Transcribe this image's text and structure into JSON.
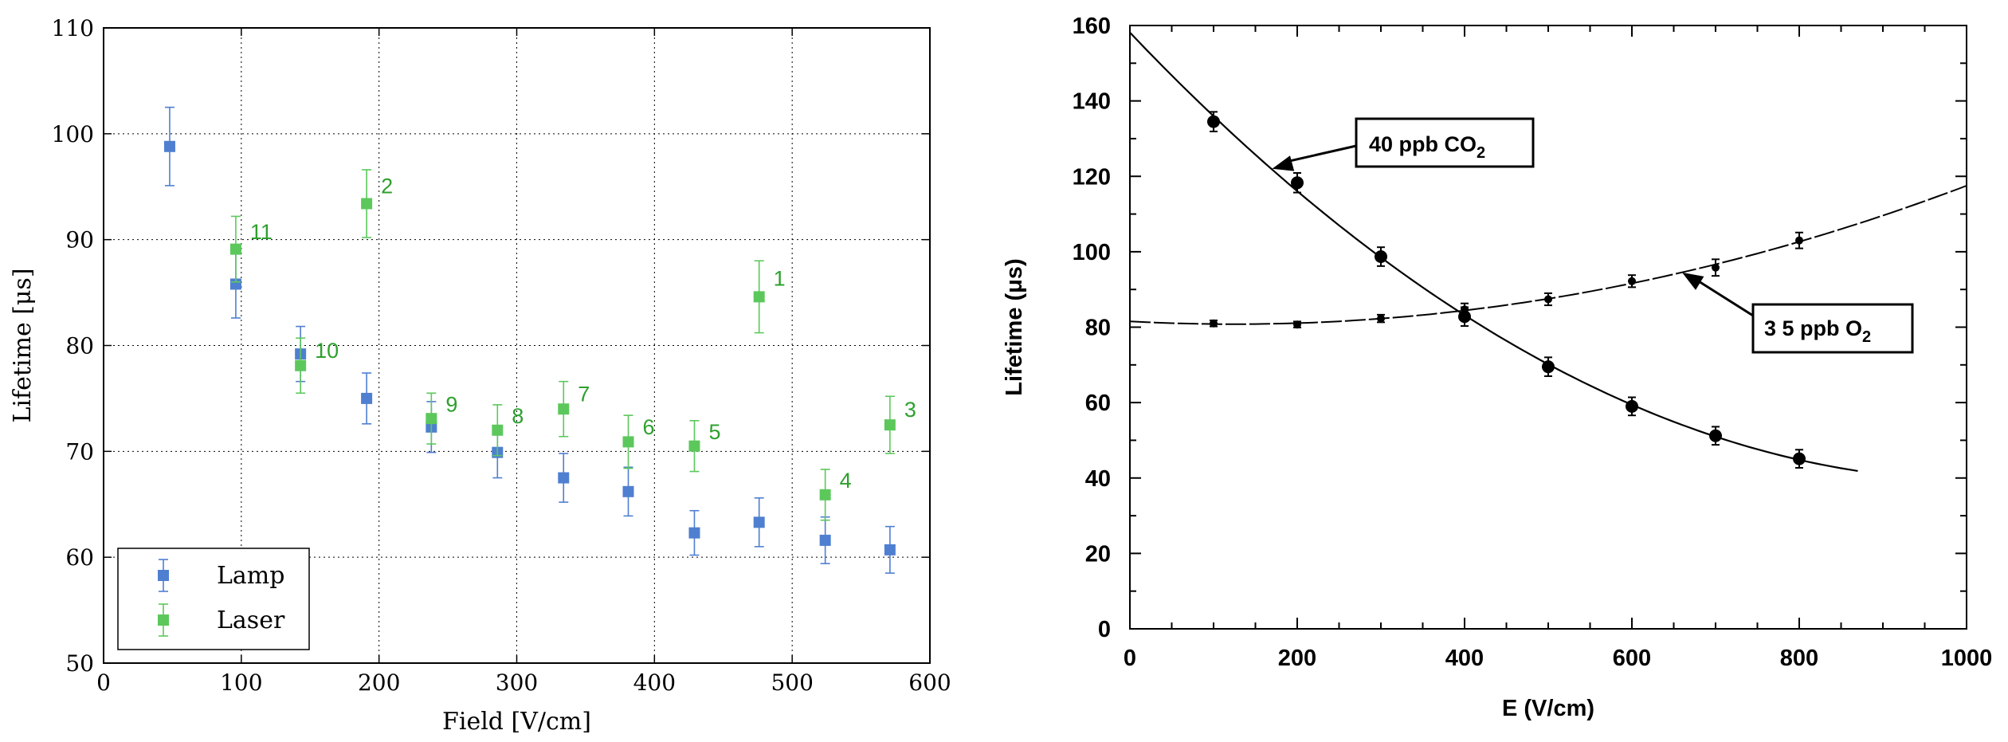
{
  "chart_data": [
    {
      "type": "scatter",
      "title": "",
      "xlabel": "Field [V/cm]",
      "ylabel": "Lifetime [μs]",
      "xlim": [
        0,
        600
      ],
      "ylim": [
        50,
        110
      ],
      "xticks": [
        "0",
        "100",
        "200",
        "300",
        "400",
        "500",
        "600"
      ],
      "yticks": [
        "50",
        "60",
        "70",
        "80",
        "90",
        "100",
        "110"
      ],
      "grid": true,
      "legend_position": "bottom-left",
      "series": [
        {
          "name": "Lamp",
          "color": "#4f7fd0",
          "x": [
            48,
            96,
            143,
            191,
            238,
            286,
            334,
            381,
            429,
            476,
            524,
            571
          ],
          "y": [
            98.8,
            85.8,
            79.2,
            75.0,
            72.3,
            69.9,
            67.5,
            66.2,
            62.3,
            63.3,
            61.6,
            60.7
          ],
          "err": [
            3.7,
            3.2,
            2.6,
            2.4,
            2.4,
            2.4,
            2.3,
            2.3,
            2.1,
            2.3,
            2.2,
            2.2
          ]
        },
        {
          "name": "Laser",
          "color": "#5cc85c",
          "x": [
            96,
            143,
            191,
            238,
            286,
            334,
            381,
            429,
            476,
            524,
            571
          ],
          "y": [
            89.1,
            78.1,
            93.4,
            73.1,
            72.0,
            74.0,
            70.9,
            70.5,
            84.6,
            65.9,
            72.5
          ],
          "err": [
            3.1,
            2.6,
            3.2,
            2.4,
            2.4,
            2.6,
            2.5,
            2.4,
            3.4,
            2.4,
            2.7
          ],
          "point_labels": [
            "11",
            "10",
            "2",
            "9",
            "8",
            "7",
            "6",
            "5",
            "1",
            "4",
            "3"
          ]
        }
      ]
    },
    {
      "type": "scatter",
      "title": "",
      "xlabel": "E (V/cm)",
      "ylabel": "Lifetime (μs)",
      "xlim": [
        0,
        1000
      ],
      "ylim": [
        0,
        160
      ],
      "xticks": [
        "0",
        "200",
        "400",
        "600",
        "800",
        "1000"
      ],
      "yticks": [
        "0",
        "20",
        "40",
        "60",
        "80",
        "100",
        "120",
        "140",
        "160"
      ],
      "grid": false,
      "series": [
        {
          "label": "40 ppb CO2",
          "x": [
            100,
            200,
            300,
            400,
            500,
            600,
            700,
            800
          ],
          "y": [
            134.5,
            118.3,
            98.7,
            82.8,
            69.5,
            59.0,
            51.2,
            45.1
          ],
          "err": [
            2.6,
            2.6,
            2.5,
            2.5,
            2.5,
            2.4,
            2.4,
            2.4
          ]
        },
        {
          "label": "3 5 ppb O2",
          "x": [
            100,
            200,
            300,
            400,
            500,
            600,
            700,
            800
          ],
          "y": [
            81.0,
            80.7,
            82.3,
            84.7,
            87.4,
            92.2,
            95.8,
            103.0
          ],
          "err": [
            0.8,
            0.8,
            1.0,
            1.6,
            1.6,
            1.6,
            2.2,
            2.1
          ]
        }
      ],
      "annotations": [
        {
          "text_main": "40 ppb  CO",
          "text_sub": "2"
        },
        {
          "text_main": "3 5 ppb O",
          "text_sub": "2"
        }
      ]
    }
  ]
}
